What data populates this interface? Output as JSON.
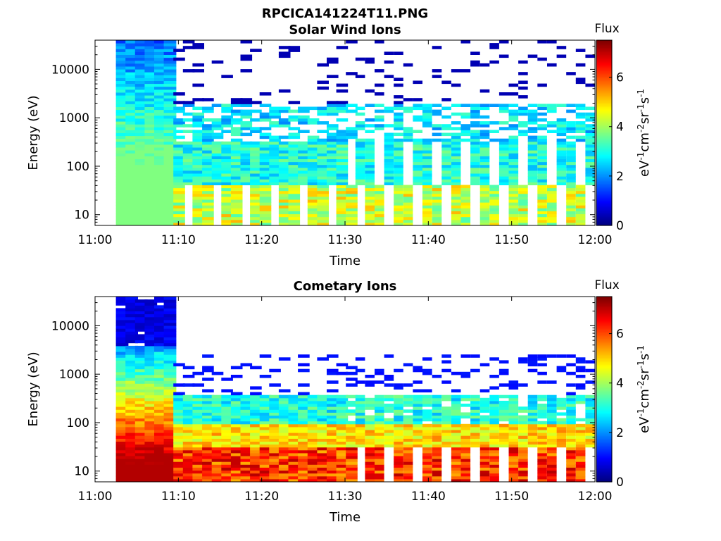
{
  "figure_title": "RPCICA141224T11.PNG",
  "chart_data": [
    {
      "type": "heatmap",
      "title": "Solar Wind Ions",
      "xlabel": "Time",
      "ylabel": "Energy (eV)",
      "x_ticks": [
        "11:00",
        "11:10",
        "11:20",
        "11:30",
        "11:40",
        "11:50",
        "12:00"
      ],
      "x_range_min": [
        0,
        60
      ],
      "y_scale": "log",
      "y_ticks": [
        "10",
        "100",
        "1000",
        "10000"
      ],
      "y_range": [
        6,
        40000
      ],
      "data_start_min": 2.5,
      "colorbar": {
        "label": "Flux",
        "units": "eV-1cm-2sr-1s-1",
        "ticks": [
          "0",
          "2",
          "4",
          "6"
        ],
        "range": [
          0,
          7.5
        ],
        "colormap": "jet"
      },
      "grid": false
    },
    {
      "type": "heatmap",
      "title": "Cometary Ions",
      "xlabel": "Time",
      "ylabel": "Energy (eV)",
      "x_ticks": [
        "11:00",
        "11:10",
        "11:20",
        "11:30",
        "11:40",
        "11:50",
        "12:00"
      ],
      "x_range_min": [
        0,
        60
      ],
      "y_scale": "log",
      "y_ticks": [
        "10",
        "100",
        "1000",
        "10000"
      ],
      "y_range": [
        6,
        40000
      ],
      "data_start_min": 2.5,
      "colorbar": {
        "label": "Flux",
        "units": "eV-1cm-2sr-1s-1",
        "ticks": [
          "0",
          "2",
          "4",
          "6"
        ],
        "range": [
          0,
          7.5
        ],
        "colormap": "jet"
      },
      "grid": false
    }
  ]
}
